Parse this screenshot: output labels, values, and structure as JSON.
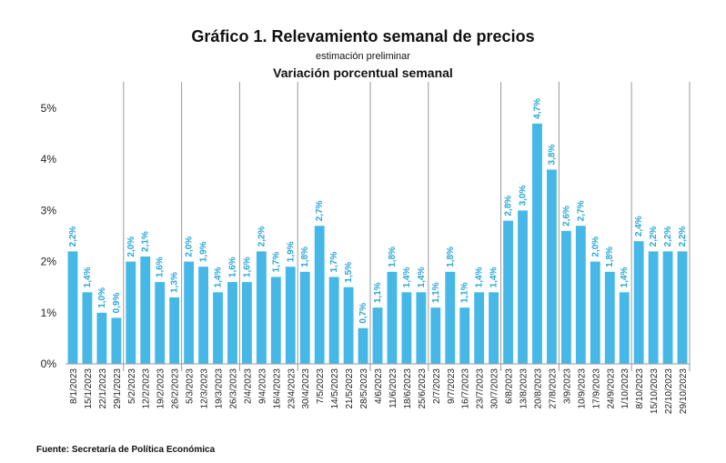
{
  "chart_data": {
    "type": "bar",
    "title": "Gráfico 1. Relevamiento semanal de precios",
    "subtitle": "estimación preliminar",
    "subtitle2": "Variación porcentual semanal",
    "source": "Fuente: Secretaría de Política Económica",
    "bar_color": "#45b8e8",
    "label_color": "#2aa7d9",
    "ylim": [
      0,
      5
    ],
    "yticks": [
      "0%",
      "1%",
      "2%",
      "3%",
      "4%",
      "5%"
    ],
    "month_separators_after": [
      3,
      7,
      11,
      15,
      20,
      24,
      29,
      33,
      38,
      42,
      46
    ],
    "categories": [
      "8/1/2023",
      "15/1/2023",
      "22/1/2023",
      "29/1/2023",
      "5/2/2023",
      "12/2/2023",
      "19/2/2023",
      "26/2/2023",
      "5/3/2023",
      "12/3/2023",
      "19/3/2023",
      "26/3/2023",
      "2/4/2023",
      "9/4/2023",
      "16/4/2023",
      "23/4/2023",
      "30/4/2023",
      "7/5/2023",
      "14/5/2023",
      "21/5/2023",
      "28/5/2023",
      "4/6/2023",
      "11/6/2023",
      "18/6/2023",
      "25/6/2023",
      "2/7/2023",
      "9/7/2023",
      "16/7/2023",
      "23/7/2023",
      "30/7/2023",
      "6/8/2023",
      "13/8/2023",
      "20/8/2023",
      "27/8/2023",
      "3/9/2023",
      "10/9/2023",
      "17/9/2023",
      "24/9/2023",
      "1/10/2023",
      "8/10/2023",
      "15/10/2023",
      "22/10/2023",
      "29/10/2023"
    ],
    "values": [
      2.2,
      1.4,
      1.0,
      0.9,
      2.0,
      2.1,
      1.6,
      1.3,
      2.0,
      1.9,
      1.4,
      1.6,
      1.6,
      2.2,
      1.7,
      1.9,
      1.8,
      2.7,
      1.7,
      1.5,
      0.7,
      1.1,
      1.8,
      1.4,
      1.4,
      1.1,
      1.8,
      1.1,
      1.4,
      1.4,
      2.8,
      3.0,
      4.7,
      3.8,
      2.6,
      2.7,
      2.0,
      1.8,
      1.4,
      2.4,
      2.2,
      2.2,
      2.2
    ],
    "labels": [
      "2,2%",
      "1,4%",
      "1,0%",
      "0,9%",
      "2,0%",
      "2,1%",
      "1,6%",
      "1,3%",
      "2,0%",
      "1,9%",
      "1,4%",
      "1,6%",
      "1,6%",
      "2,2%",
      "1,7%",
      "1,9%",
      "1,8%",
      "2,7%",
      "1,7%",
      "1,5%",
      "0,7%",
      "1,1%",
      "1,8%",
      "1,4%",
      "1,4%",
      "1,1%",
      "1,8%",
      "1,1%",
      "1,4%",
      "1,4%",
      "2,8%",
      "3,0%",
      "4,7%",
      "3,8%",
      "2,6%",
      "2,7%",
      "2,0%",
      "1,8%",
      "1,4%",
      "2,4%",
      "2,2%",
      "2,2%",
      "2,2%"
    ]
  }
}
